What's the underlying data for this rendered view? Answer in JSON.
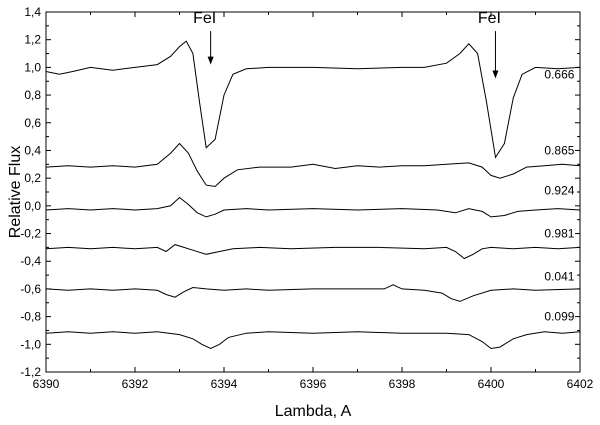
{
  "chart_data": {
    "type": "line",
    "xlabel": "Lambda, A",
    "ylabel": "Relative Flux",
    "xlim": [
      6390,
      6402
    ],
    "ylim": [
      -1.2,
      1.4
    ],
    "x_ticks": [
      "6390",
      "6392",
      "6394",
      "6396",
      "6398",
      "6400",
      "6402"
    ],
    "y_ticks": [
      "-1,2",
      "-1,0",
      "-0,8",
      "-0,6",
      "-0,4",
      "-0,2",
      "0,0",
      "0,2",
      "0,4",
      "0,6",
      "0,8",
      "1,0",
      "1,2",
      "1,4"
    ],
    "grid": false,
    "legend": "none",
    "annotations": [
      {
        "text": "FeI",
        "x": 6393.7,
        "y": 1.32,
        "arrow_to": [
          6393.7,
          1.02
        ]
      },
      {
        "text": "FeI",
        "x": 6400.1,
        "y": 1.32,
        "arrow_to": [
          6400.1,
          0.92
        ]
      }
    ],
    "series": [
      {
        "label": "0.666",
        "label_x": 6401.2,
        "label_y": 0.95,
        "x": [
          6390.0,
          6390.3,
          6390.6,
          6391.0,
          6391.5,
          6392.0,
          6392.5,
          6392.8,
          6393.0,
          6393.15,
          6393.3,
          6393.45,
          6393.6,
          6393.8,
          6394.0,
          6394.2,
          6394.5,
          6395.0,
          6396.0,
          6397.0,
          6398.0,
          6398.5,
          6399.0,
          6399.3,
          6399.5,
          6399.7,
          6399.9,
          6400.1,
          6400.3,
          6400.5,
          6400.7,
          6401.0,
          6401.5,
          6402.0
        ],
        "y": [
          0.97,
          0.95,
          0.97,
          1.0,
          0.98,
          1.0,
          1.02,
          1.08,
          1.15,
          1.19,
          1.1,
          0.75,
          0.42,
          0.48,
          0.8,
          0.95,
          0.99,
          1.0,
          1.0,
          0.99,
          1.0,
          1.0,
          1.03,
          1.1,
          1.17,
          1.1,
          0.75,
          0.35,
          0.45,
          0.78,
          0.95,
          1.0,
          0.99,
          1.0
        ]
      },
      {
        "label": "0.865",
        "label_x": 6401.2,
        "label_y": 0.4,
        "x": [
          6390.0,
          6390.5,
          6391.0,
          6391.5,
          6392.0,
          6392.5,
          6392.8,
          6393.0,
          6393.2,
          6393.4,
          6393.6,
          6393.8,
          6394.0,
          6394.3,
          6394.8,
          6395.5,
          6396.0,
          6396.5,
          6397.0,
          6397.5,
          6398.0,
          6398.5,
          6399.0,
          6399.5,
          6399.8,
          6400.0,
          6400.2,
          6400.5,
          6400.8,
          6401.2,
          6401.6,
          6402.0
        ],
        "y": [
          0.28,
          0.29,
          0.28,
          0.29,
          0.28,
          0.3,
          0.38,
          0.45,
          0.38,
          0.25,
          0.15,
          0.14,
          0.2,
          0.26,
          0.28,
          0.28,
          0.3,
          0.27,
          0.29,
          0.28,
          0.29,
          0.29,
          0.3,
          0.31,
          0.28,
          0.22,
          0.2,
          0.23,
          0.28,
          0.29,
          0.3,
          0.29
        ]
      },
      {
        "label": "0.924",
        "label_x": 6401.2,
        "label_y": 0.11,
        "x": [
          6390.0,
          6390.5,
          6391.0,
          6391.5,
          6392.0,
          6392.5,
          6392.8,
          6393.0,
          6393.2,
          6393.4,
          6393.6,
          6393.8,
          6394.0,
          6394.5,
          6395.0,
          6396.0,
          6397.0,
          6398.0,
          6398.8,
          6399.2,
          6399.5,
          6399.8,
          6400.0,
          6400.3,
          6400.6,
          6401.0,
          6401.5,
          6402.0
        ],
        "y": [
          -0.03,
          -0.02,
          -0.03,
          -0.02,
          -0.03,
          -0.02,
          0.0,
          0.06,
          0.01,
          -0.05,
          -0.08,
          -0.06,
          -0.03,
          -0.02,
          -0.03,
          -0.02,
          -0.03,
          -0.02,
          -0.03,
          -0.05,
          -0.02,
          -0.04,
          -0.08,
          -0.07,
          -0.04,
          -0.03,
          -0.02,
          -0.03
        ]
      },
      {
        "label": "0.981",
        "label_x": 6401.2,
        "label_y": -0.2,
        "x": [
          6390.0,
          6390.5,
          6391.0,
          6391.5,
          6392.0,
          6392.5,
          6392.7,
          6392.9,
          6393.1,
          6393.3,
          6393.6,
          6393.9,
          6394.2,
          6394.8,
          6395.5,
          6396.5,
          6397.5,
          6398.5,
          6399.0,
          6399.2,
          6399.4,
          6399.6,
          6399.8,
          6400.0,
          6400.5,
          6401.0,
          6401.5,
          6402.0
        ],
        "y": [
          -0.31,
          -0.3,
          -0.31,
          -0.3,
          -0.31,
          -0.3,
          -0.33,
          -0.28,
          -0.3,
          -0.32,
          -0.35,
          -0.33,
          -0.31,
          -0.3,
          -0.31,
          -0.3,
          -0.3,
          -0.31,
          -0.3,
          -0.33,
          -0.38,
          -0.35,
          -0.31,
          -0.3,
          -0.31,
          -0.3,
          -0.31,
          -0.3
        ]
      },
      {
        "label": "0.041",
        "label_x": 6401.2,
        "label_y": -0.51,
        "x": [
          6390.0,
          6390.5,
          6391.0,
          6391.5,
          6392.0,
          6392.5,
          6392.7,
          6392.9,
          6393.1,
          6393.3,
          6393.6,
          6394.0,
          6394.5,
          6395.0,
          6396.0,
          6397.0,
          6397.6,
          6397.8,
          6398.0,
          6398.5,
          6398.9,
          6399.1,
          6399.3,
          6399.6,
          6400.0,
          6400.5,
          6401.0,
          6402.0
        ],
        "y": [
          -0.6,
          -0.61,
          -0.6,
          -0.61,
          -0.6,
          -0.61,
          -0.64,
          -0.66,
          -0.62,
          -0.59,
          -0.6,
          -0.61,
          -0.6,
          -0.61,
          -0.6,
          -0.6,
          -0.6,
          -0.57,
          -0.6,
          -0.61,
          -0.63,
          -0.67,
          -0.69,
          -0.65,
          -0.61,
          -0.6,
          -0.61,
          -0.6
        ]
      },
      {
        "label": "0.099",
        "label_x": 6401.2,
        "label_y": -0.8,
        "x": [
          6390.0,
          6390.5,
          6391.0,
          6391.5,
          6392.0,
          6392.5,
          6393.0,
          6393.3,
          6393.5,
          6393.7,
          6393.9,
          6394.1,
          6394.5,
          6395.0,
          6396.0,
          6397.0,
          6398.0,
          6399.0,
          6399.5,
          6399.8,
          6400.0,
          6400.2,
          6400.5,
          6400.8,
          6401.2,
          6401.6,
          6402.0
        ],
        "y": [
          -0.92,
          -0.91,
          -0.92,
          -0.91,
          -0.92,
          -0.91,
          -0.93,
          -0.96,
          -1.0,
          -1.03,
          -1.0,
          -0.95,
          -0.92,
          -0.91,
          -0.92,
          -0.91,
          -0.92,
          -0.92,
          -0.93,
          -0.98,
          -1.03,
          -1.02,
          -0.96,
          -0.93,
          -0.91,
          -0.92,
          -0.91
        ]
      }
    ]
  }
}
